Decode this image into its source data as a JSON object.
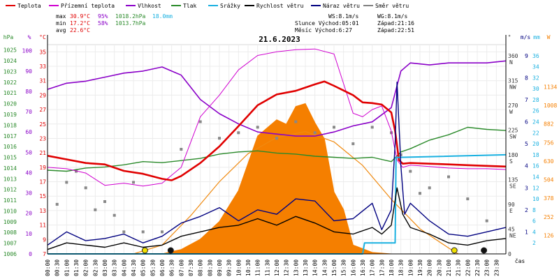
{
  "chart_data": {
    "type": "line",
    "title": "21.6.2023",
    "legend": [
      {
        "label": "Teplota",
        "color": "#e00000"
      },
      {
        "label": "Přízemní teplota",
        "color": "#d000d0"
      },
      {
        "label": "Vlhkost",
        "color": "#8a00c8"
      },
      {
        "label": "Tlak",
        "color": "#2a8a2a"
      },
      {
        "label": "Srážky",
        "color": "#19b0e0"
      },
      {
        "label": "Rychlost větru",
        "color": "#000000"
      },
      {
        "label": "Náraz větru",
        "color": "#000080"
      },
      {
        "label": "Směr větru",
        "color": "#808080"
      }
    ],
    "stats": {
      "max": {
        "label": "max",
        "temp": "30.9°C",
        "hum": "95%",
        "press": "1018.2hPa",
        "rain": "18.0mm"
      },
      "min": {
        "label": "min",
        "temp": "17.2°C",
        "hum": "58%",
        "press": "1013.7hPa"
      },
      "avg": {
        "label": "avg",
        "temp": "22.6°C"
      }
    },
    "info": {
      "ws": "WS:8.1m/s",
      "wg": "WG:8.1m/s",
      "sun": "Slunce Východ:05:01",
      "sun_set": "Západ:21:16",
      "moon": "Měsíc  Východ:6:27",
      "moon_set": "Západ:22:51"
    },
    "axes": {
      "hpa": {
        "unit": "hPa",
        "ticks": [
          "1025",
          "1024",
          "1023",
          "1022",
          "1021",
          "1020",
          "1019",
          "1018",
          "1017",
          "1016",
          "1015",
          "1014",
          "1013",
          "1012",
          "1011",
          "1010",
          "1009",
          "1008",
          "1007",
          "1006"
        ],
        "range": [
          1006,
          1025.5
        ]
      },
      "pct": {
        "unit": "%",
        "ticks": [
          "100",
          "90",
          "80",
          "70",
          "60",
          "50",
          "40",
          "30",
          "20",
          "10",
          "0"
        ],
        "range": [
          0,
          103
        ]
      },
      "degc": {
        "unit": "°C",
        "ticks": [
          "35",
          "33",
          "31",
          "29",
          "27",
          "25",
          "23",
          "21",
          "19",
          "17",
          "15",
          "13",
          "11",
          "9",
          "7"
        ],
        "range": [
          7,
          36
        ]
      },
      "dir": {
        "unit": "°",
        "ticks": [
          "360",
          "315",
          "270",
          "225",
          "180",
          "135",
          "90",
          "45",
          "0"
        ],
        "labels": [
          "N",
          "NW",
          "W",
          "SW",
          "S",
          "SE",
          "E",
          "NE",
          ""
        ],
        "range": [
          0,
          380
        ]
      },
      "ms": {
        "unit": "m/s",
        "ticks": [
          "9",
          "8",
          "7",
          "6",
          "5",
          "4",
          "3",
          "2",
          "1"
        ],
        "range": [
          0,
          9.5
        ]
      },
      "mm": {
        "unit": "mm",
        "ticks": [
          "36",
          "34",
          "32",
          "30",
          "28",
          "26",
          "24",
          "22",
          "20",
          "18",
          "16",
          "14",
          "12",
          "10",
          "8",
          "6",
          "4",
          "2"
        ],
        "range": [
          0,
          38
        ]
      },
      "wm2": {
        "unit": "W",
        "ticks": [
          "1134",
          "1008",
          "882",
          "756",
          "630",
          "504",
          "378",
          "252",
          "126"
        ],
        "range": [
          0,
          1420
        ]
      },
      "time": {
        "label": "čas",
        "ticks": [
          "00:00",
          "00:30",
          "01:00",
          "01:30",
          "02:00",
          "02:30",
          "03:00",
          "03:30",
          "04:00",
          "04:30",
          "05:00",
          "05:30",
          "06:00",
          "06:30",
          "07:00",
          "07:30",
          "08:00",
          "08:30",
          "09:00",
          "09:30",
          "10:00",
          "10:30",
          "11:00",
          "11:30",
          "12:00",
          "12:30",
          "13:00",
          "13:30",
          "14:00",
          "14:30",
          "15:00",
          "15:30",
          "16:00",
          "16:30",
          "17:00",
          "17:30",
          "18:00",
          "18:30",
          "19:00",
          "19:30",
          "20:00",
          "20:30",
          "21:00",
          "21:30",
          "22:00",
          "22:30",
          "23:00",
          "23:30"
        ]
      }
    },
    "series": {
      "temp_c": [
        [
          0,
          20.6
        ],
        [
          1,
          20.1
        ],
        [
          2,
          19.6
        ],
        [
          3,
          19.4
        ],
        [
          4,
          18.5
        ],
        [
          5,
          18.1
        ],
        [
          6,
          17.4
        ],
        [
          6.5,
          17.2
        ],
        [
          7,
          17.8
        ],
        [
          8,
          19.6
        ],
        [
          9,
          21.9
        ],
        [
          10,
          24.7
        ],
        [
          11,
          27.6
        ],
        [
          12,
          29.1
        ],
        [
          13,
          29.6
        ],
        [
          14,
          30.5
        ],
        [
          14.5,
          30.9
        ],
        [
          15,
          30.3
        ],
        [
          16,
          29.0
        ],
        [
          16.5,
          28.0
        ],
        [
          17,
          27.9
        ],
        [
          17.5,
          27.7
        ],
        [
          18,
          26.6
        ],
        [
          18.2,
          24.0
        ],
        [
          18.4,
          20.0
        ],
        [
          18.6,
          19.5
        ],
        [
          19,
          19.6
        ],
        [
          20,
          19.5
        ],
        [
          21,
          19.4
        ],
        [
          22,
          19.3
        ],
        [
          23,
          19.2
        ],
        [
          24,
          19.1
        ]
      ],
      "ground_temp_c": [
        [
          0,
          19.0
        ],
        [
          1,
          18.8
        ],
        [
          2,
          18.2
        ],
        [
          3,
          16.5
        ],
        [
          4,
          16.8
        ],
        [
          5,
          16.4
        ],
        [
          6,
          16.8
        ],
        [
          7,
          19.0
        ],
        [
          8,
          26.0
        ],
        [
          9,
          29.0
        ],
        [
          10,
          32.5
        ],
        [
          11,
          34.5
        ],
        [
          12,
          35.0
        ],
        [
          13,
          35.3
        ],
        [
          14,
          35.4
        ],
        [
          15,
          34.7
        ],
        [
          16,
          26.5
        ],
        [
          16.5,
          26.0
        ],
        [
          17,
          27.0
        ],
        [
          17.5,
          27.5
        ],
        [
          18,
          24.0
        ],
        [
          18.3,
          20.0
        ],
        [
          18.6,
          19.0
        ],
        [
          19,
          19.3
        ],
        [
          20,
          19.1
        ],
        [
          21,
          18.9
        ],
        [
          22,
          18.8
        ],
        [
          23,
          18.8
        ],
        [
          24,
          18.7
        ]
      ],
      "humidity_pct": [
        [
          0,
          81
        ],
        [
          1,
          84
        ],
        [
          2,
          85
        ],
        [
          3,
          87
        ],
        [
          4,
          89
        ],
        [
          5,
          90
        ],
        [
          6,
          92
        ],
        [
          7,
          88
        ],
        [
          8,
          76
        ],
        [
          9,
          69
        ],
        [
          10,
          64
        ],
        [
          11,
          60
        ],
        [
          12,
          59
        ],
        [
          13,
          58
        ],
        [
          14,
          58
        ],
        [
          15,
          60
        ],
        [
          16,
          63
        ],
        [
          17,
          65
        ],
        [
          18,
          72
        ],
        [
          18.5,
          90
        ],
        [
          19,
          94
        ],
        [
          20,
          93
        ],
        [
          21,
          94
        ],
        [
          22,
          94
        ],
        [
          23,
          94
        ],
        [
          24,
          95
        ]
      ],
      "pressure_hpa": [
        [
          0,
          1013.8
        ],
        [
          1,
          1013.7
        ],
        [
          2,
          1014.0
        ],
        [
          3,
          1014.1
        ],
        [
          4,
          1014.3
        ],
        [
          5,
          1014.6
        ],
        [
          6,
          1014.5
        ],
        [
          7,
          1014.7
        ],
        [
          8,
          1014.9
        ],
        [
          9,
          1015.3
        ],
        [
          10,
          1015.5
        ],
        [
          11,
          1015.6
        ],
        [
          12,
          1015.4
        ],
        [
          13,
          1015.3
        ],
        [
          14,
          1015.1
        ],
        [
          15,
          1015.0
        ],
        [
          16,
          1014.9
        ],
        [
          17,
          1015.0
        ],
        [
          18,
          1014.6
        ],
        [
          18.5,
          1015.5
        ],
        [
          19,
          1015.8
        ],
        [
          20,
          1016.6
        ],
        [
          21,
          1017.1
        ],
        [
          22,
          1017.8
        ],
        [
          23,
          1017.6
        ],
        [
          24,
          1017.5
        ]
      ],
      "rain_mm": [
        [
          0,
          0
        ],
        [
          16.5,
          0
        ],
        [
          16.6,
          2.0
        ],
        [
          18.2,
          2.0
        ],
        [
          18.25,
          17.5
        ],
        [
          24,
          18.0
        ]
      ],
      "wind_ms": [
        [
          0,
          0.2
        ],
        [
          1,
          0.5
        ],
        [
          2,
          0.4
        ],
        [
          3,
          0.3
        ],
        [
          4,
          0.5
        ],
        [
          5,
          0.3
        ],
        [
          6,
          0.4
        ],
        [
          7,
          0.8
        ],
        [
          8,
          1.0
        ],
        [
          9,
          1.2
        ],
        [
          10,
          1.3
        ],
        [
          11,
          1.6
        ],
        [
          12,
          1.3
        ],
        [
          13,
          1.7
        ],
        [
          14,
          1.4
        ],
        [
          15,
          1.0
        ],
        [
          16,
          0.9
        ],
        [
          17,
          1.2
        ],
        [
          17.5,
          0.9
        ],
        [
          18,
          1.3
        ],
        [
          18.3,
          3.0
        ],
        [
          18.6,
          1.8
        ],
        [
          19,
          1.2
        ],
        [
          20,
          0.9
        ],
        [
          21,
          0.5
        ],
        [
          22,
          0.4
        ],
        [
          23,
          0.6
        ],
        [
          24,
          0.7
        ]
      ],
      "gust_ms": [
        [
          0,
          0.4
        ],
        [
          1,
          1.0
        ],
        [
          2,
          0.6
        ],
        [
          3,
          0.7
        ],
        [
          4,
          0.9
        ],
        [
          5,
          0.5
        ],
        [
          6,
          0.8
        ],
        [
          7,
          1.4
        ],
        [
          8,
          1.7
        ],
        [
          9,
          2.1
        ],
        [
          10,
          1.5
        ],
        [
          11,
          2.0
        ],
        [
          12,
          1.8
        ],
        [
          13,
          2.5
        ],
        [
          14,
          2.4
        ],
        [
          15,
          1.5
        ],
        [
          16,
          1.6
        ],
        [
          17,
          2.3
        ],
        [
          17.5,
          1.1
        ],
        [
          18,
          2.0
        ],
        [
          18.2,
          5.0
        ],
        [
          18.3,
          7.8
        ],
        [
          18.5,
          4.0
        ],
        [
          18.7,
          1.8
        ],
        [
          19,
          2.3
        ],
        [
          20,
          1.5
        ],
        [
          21,
          0.9
        ],
        [
          22,
          0.8
        ],
        [
          23,
          1.0
        ],
        [
          24,
          1.2
        ]
      ],
      "solar_wm2": [
        [
          0,
          0
        ],
        [
          6,
          0
        ],
        [
          7,
          30
        ],
        [
          8,
          100
        ],
        [
          9,
          220
        ],
        [
          10,
          430
        ],
        [
          11,
          800
        ],
        [
          12,
          910
        ],
        [
          12.5,
          880
        ],
        [
          13,
          1000
        ],
        [
          13.5,
          1020
        ],
        [
          14,
          890
        ],
        [
          14.5,
          780
        ],
        [
          15,
          420
        ],
        [
          15.5,
          300
        ],
        [
          16,
          60
        ],
        [
          17,
          10
        ],
        [
          18,
          0
        ],
        [
          24,
          0
        ]
      ],
      "solar_theoretical_wm2": [
        [
          4.5,
          0
        ],
        [
          6,
          60
        ],
        [
          7.5,
          260
        ],
        [
          9,
          490
        ],
        [
          10.5,
          680
        ],
        [
          12,
          790
        ],
        [
          13.5,
          830
        ],
        [
          15,
          760
        ],
        [
          16.5,
          600
        ],
        [
          18,
          370
        ],
        [
          19.5,
          170
        ],
        [
          21,
          40
        ],
        [
          21.5,
          0
        ]
      ],
      "wind_dir_deg": [
        [
          0.5,
          90
        ],
        [
          1,
          130
        ],
        [
          1.5,
          150
        ],
        [
          2,
          120
        ],
        [
          2.5,
          80
        ],
        [
          3,
          95
        ],
        [
          3.5,
          70
        ],
        [
          4,
          40
        ],
        [
          4.5,
          130
        ],
        [
          5,
          40
        ],
        [
          6,
          40
        ],
        [
          7,
          190
        ],
        [
          8,
          240
        ],
        [
          9,
          210
        ],
        [
          10,
          220
        ],
        [
          11,
          230
        ],
        [
          12,
          210
        ],
        [
          13,
          240
        ],
        [
          14,
          220
        ],
        [
          15,
          230
        ],
        [
          16,
          200
        ],
        [
          17,
          230
        ],
        [
          18,
          220
        ],
        [
          18.5,
          180
        ],
        [
          19,
          150
        ],
        [
          19.5,
          110
        ],
        [
          20,
          120
        ],
        [
          21,
          140
        ],
        [
          22,
          100
        ],
        [
          23,
          60
        ]
      ]
    },
    "sun_markers_h": [
      5.1,
      21.3
    ],
    "moon_markers_h": [
      6.45,
      22.85
    ]
  }
}
